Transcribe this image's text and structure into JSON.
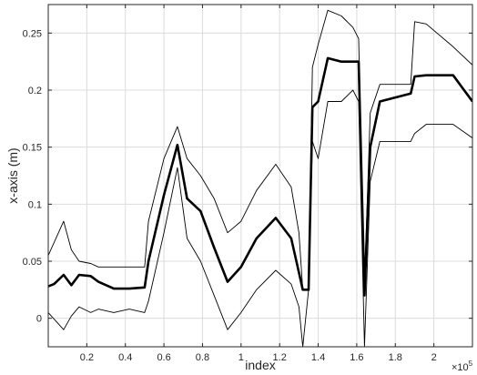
{
  "chart_data": {
    "type": "line",
    "title": "",
    "xlabel": "index",
    "ylabel": "x-axis (m)",
    "x_exponent_label": "×10",
    "x_exponent_power": "5",
    "xlim": [
      0,
      220000
    ],
    "ylim": [
      -0.025,
      0.275
    ],
    "grid": true,
    "x_ticks": [
      20000,
      40000,
      60000,
      80000,
      100000,
      120000,
      140000,
      160000,
      180000,
      200000
    ],
    "x_tick_labels": [
      "0.2",
      "0.4",
      "0.6",
      "0.8",
      "1",
      "1.2",
      "1.4",
      "1.6",
      "1.8",
      "2"
    ],
    "y_ticks": [
      0,
      0.05,
      0.1,
      0.15,
      0.2,
      0.25
    ],
    "y_tick_labels": [
      "0",
      "0.05",
      "0.1",
      "0.15",
      "0.2",
      "0.25"
    ],
    "colors": {
      "axes": "#262626",
      "grid": "#dcdcdc",
      "series": "#000000"
    },
    "series": [
      {
        "role": "mean",
        "x": [
          0,
          3000,
          8000,
          12000,
          16000,
          22000,
          26000,
          34000,
          42000,
          50000,
          52000,
          60000,
          67000,
          72000,
          79000,
          86000,
          93000,
          100000,
          108000,
          118000,
          126000,
          130000,
          132000,
          135000,
          137000,
          140000,
          145000,
          152000,
          158000,
          161000,
          164000,
          167000,
          172000,
          188000,
          190000,
          196000,
          210000,
          220000
        ],
        "values": [
          0.028,
          0.03,
          0.038,
          0.029,
          0.038,
          0.037,
          0.032,
          0.026,
          0.026,
          0.027,
          0.05,
          0.108,
          0.152,
          0.105,
          0.094,
          0.062,
          0.032,
          0.045,
          0.07,
          0.088,
          0.07,
          0.04,
          0.025,
          0.025,
          0.185,
          0.19,
          0.228,
          0.225,
          0.225,
          0.225,
          0.02,
          0.15,
          0.19,
          0.197,
          0.212,
          0.213,
          0.213,
          0.19
        ]
      },
      {
        "role": "upper envelope",
        "x": [
          0,
          8000,
          12000,
          16000,
          22000,
          26000,
          34000,
          42000,
          50000,
          52000,
          60000,
          67000,
          72000,
          79000,
          86000,
          93000,
          100000,
          108000,
          118000,
          126000,
          130000,
          132000,
          135000,
          137000,
          140000,
          145000,
          152000,
          158000,
          161000,
          164000,
          167000,
          172000,
          188000,
          190000,
          196000,
          210000,
          220000
        ],
        "values": [
          0.055,
          0.085,
          0.06,
          0.05,
          0.048,
          0.045,
          0.045,
          0.045,
          0.045,
          0.085,
          0.14,
          0.168,
          0.14,
          0.125,
          0.105,
          0.075,
          0.085,
          0.112,
          0.135,
          0.115,
          0.075,
          0.025,
          0.025,
          0.22,
          0.24,
          0.27,
          0.265,
          0.255,
          0.245,
          0.03,
          0.18,
          0.205,
          0.205,
          0.26,
          0.258,
          0.238,
          0.222
        ]
      },
      {
        "role": "lower envelope",
        "x": [
          0,
          8000,
          12000,
          16000,
          22000,
          26000,
          34000,
          42000,
          50000,
          52000,
          60000,
          67000,
          72000,
          79000,
          86000,
          93000,
          100000,
          108000,
          118000,
          126000,
          130000,
          132000,
          135000,
          137000,
          140000,
          145000,
          152000,
          158000,
          161000,
          164000,
          167000,
          172000,
          188000,
          190000,
          196000,
          210000,
          220000
        ],
        "values": [
          0.005,
          -0.01,
          0.002,
          0.01,
          0.005,
          0.008,
          0.005,
          0.008,
          0.005,
          0.015,
          0.075,
          0.132,
          0.07,
          0.05,
          0.02,
          -0.01,
          0.005,
          0.025,
          0.042,
          0.03,
          0.01,
          -0.025,
          0.025,
          0.155,
          0.14,
          0.19,
          0.19,
          0.2,
          0.19,
          -0.025,
          0.12,
          0.155,
          0.155,
          0.162,
          0.17,
          0.17,
          0.158
        ]
      }
    ]
  }
}
